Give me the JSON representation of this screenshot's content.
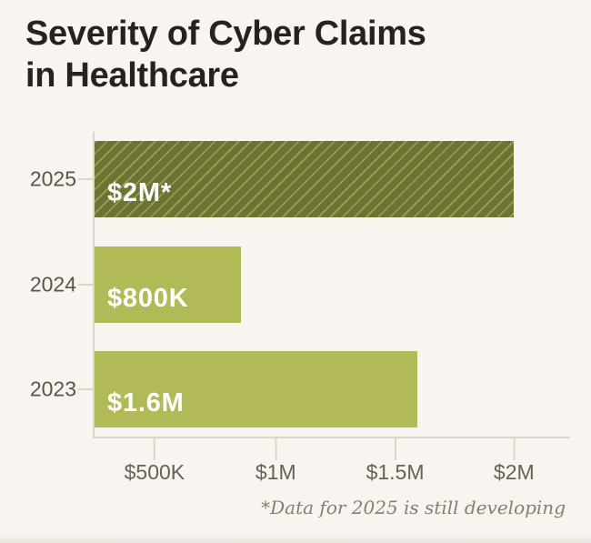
{
  "title": "Severity of Cyber Claims in Healthcare",
  "footnote": "*Data for 2025 is still developing",
  "chart_data": {
    "type": "bar",
    "orientation": "horizontal",
    "title": "Severity of Cyber Claims in Healthcare",
    "categories": [
      "2025",
      "2024",
      "2023"
    ],
    "values": [
      2000000,
      800000,
      1600000
    ],
    "value_labels": [
      "$2M*",
      "$800K",
      "$1.6M"
    ],
    "x_tick_labels": [
      "$500K",
      "$1M",
      "$1.5M",
      "$2M"
    ],
    "x_tick_values": [
      500000,
      1000000,
      1500000,
      2000000
    ],
    "xlim": [
      0,
      2000000
    ],
    "grid": false,
    "legend": false,
    "annotation": "*Data for 2025 is still developing",
    "bar_styles": [
      "hatched",
      "solid",
      "solid"
    ],
    "colors": {
      "background": "#f8f4ef",
      "title": "#26221f",
      "bar_hatched_base": "#6c7334",
      "bar_hatched_line": "#9aa24e",
      "bar_solid": "#b2ba57",
      "bar_label": "#ffffff",
      "axis_line": "#ded5c5",
      "category_label": "#5e5349",
      "tick_label": "#6a6056",
      "footnote": "#8a7d6c"
    },
    "layout": {
      "tick_pct": [
        12.6,
        38.1,
        63.2,
        88.2
      ],
      "bar_pct": [
        88.2,
        30.7,
        67.8
      ]
    }
  }
}
